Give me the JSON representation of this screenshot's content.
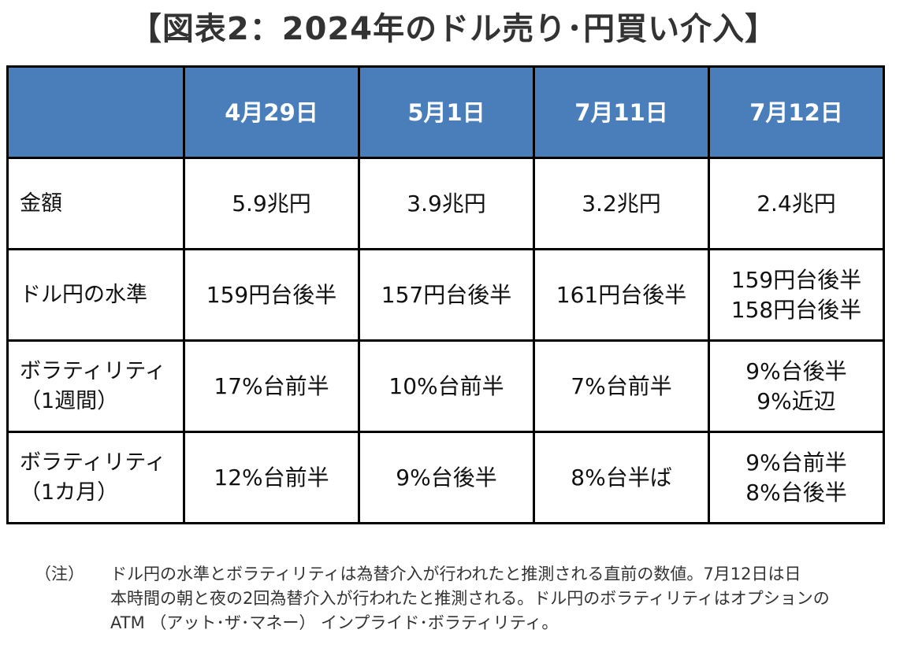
{
  "title": "【図表2：2024年のドル売り･円買い介入】",
  "table": {
    "header": [
      "",
      "4月29日",
      "5月1日",
      "7月11日",
      "7月12日"
    ],
    "rows": [
      {
        "label": [
          "金額"
        ],
        "cells": [
          [
            "5.9兆円"
          ],
          [
            "3.9兆円"
          ],
          [
            "3.2兆円"
          ],
          [
            "2.4兆円"
          ]
        ]
      },
      {
        "label": [
          "ドル円の水準"
        ],
        "cells": [
          [
            "159円台後半"
          ],
          [
            "157円台後半"
          ],
          [
            "161円台後半"
          ],
          [
            "159円台後半",
            "158円台後半"
          ]
        ]
      },
      {
        "label": [
          "ボラティリティ",
          "（1週間）"
        ],
        "cells": [
          [
            "17%台前半"
          ],
          [
            "10%台前半"
          ],
          [
            "7%台前半"
          ],
          [
            "9%台後半",
            "9%近辺"
          ]
        ]
      },
      {
        "label": [
          "ボラティリティ",
          "（1カ月）"
        ],
        "cells": [
          [
            "12%台前半"
          ],
          [
            "9%台後半"
          ],
          [
            "8%台半ば"
          ],
          [
            "9%台前半",
            "8%台後半"
          ]
        ]
      }
    ]
  },
  "note": {
    "label": "（注）",
    "lines": [
      "ドル円の水準とボラティリティは為替介入が行われたと推測される直前の数値。7月12日は日",
      "本時間の朝と夜の2回為替介入が行われたと推測される。ドル円のボラティリティはオプションの",
      "ATM （アット･ザ･マネー） インプライド･ボラティリティ。"
    ]
  },
  "colors": {
    "header_bg": "#4a7ebb",
    "header_text": "#ffffff",
    "border": "#000000"
  }
}
